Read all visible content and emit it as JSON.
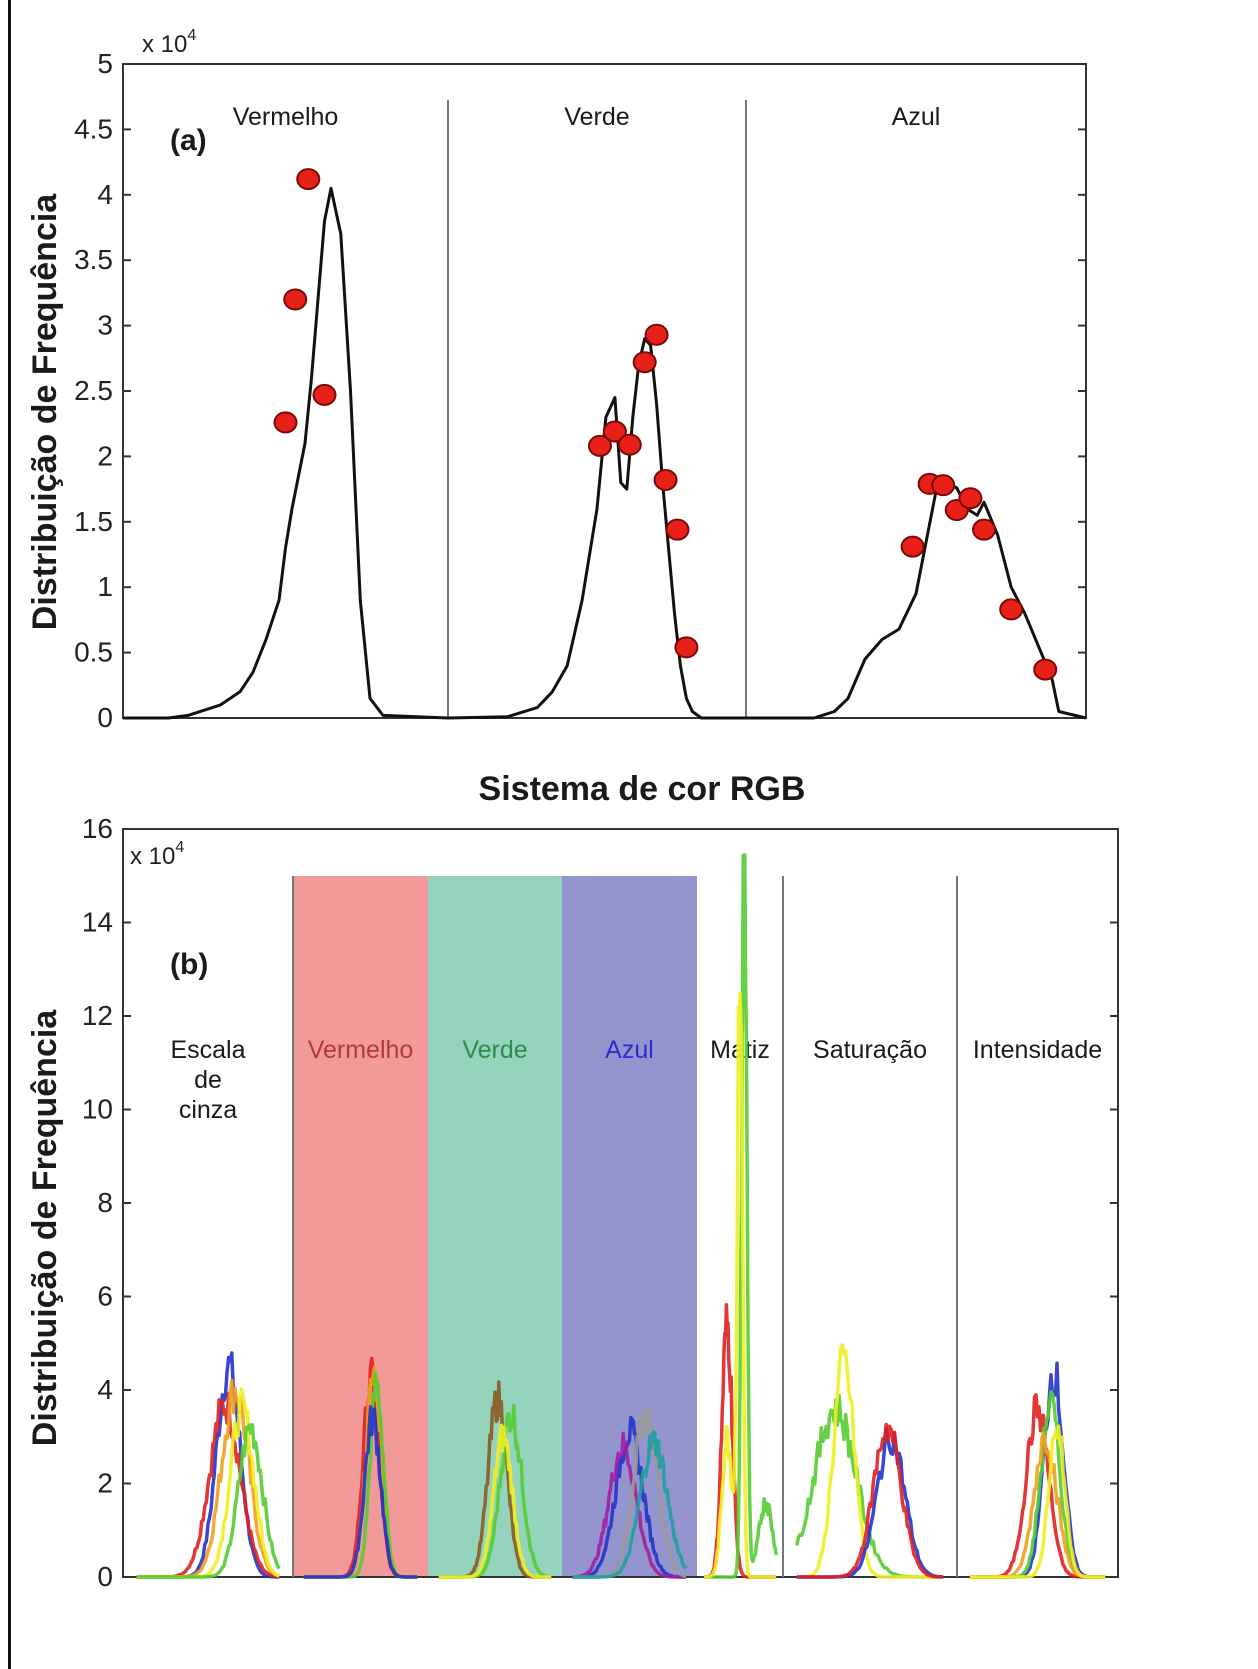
{
  "chart_data": [
    {
      "type": "line",
      "panel_label": "(a)",
      "exponent_label": "x 10",
      "exponent_sup": "4",
      "xlabel": "Sistema de cor RGB",
      "ylabel": "Distribuição de Frequência",
      "ylim": [
        0,
        5
      ],
      "yticks": [
        "0",
        "0.5",
        "1",
        "1.5",
        "2",
        "2.5",
        "3",
        "3.5",
        "4",
        "4.5",
        "5"
      ],
      "grid": false,
      "sections": [
        "Vermelho",
        "Verde",
        "Azul"
      ],
      "series": [
        {
          "section": "Vermelho",
          "x": [
            0,
            0.14,
            0.2,
            0.3,
            0.36,
            0.4,
            0.44,
            0.48,
            0.5,
            0.52,
            0.56,
            0.58,
            0.6,
            0.62,
            0.64,
            0.67,
            0.7,
            0.73,
            0.76,
            0.8,
            1
          ],
          "y": [
            0,
            0,
            0.02,
            0.1,
            0.2,
            0.35,
            0.6,
            0.9,
            1.3,
            1.6,
            2.1,
            2.6,
            3.2,
            3.8,
            4.05,
            3.7,
            2.5,
            0.9,
            0.15,
            0.02,
            0
          ]
        },
        {
          "section": "Verde",
          "x": [
            0,
            0.2,
            0.3,
            0.35,
            0.4,
            0.45,
            0.5,
            0.53,
            0.56,
            0.58,
            0.6,
            0.62,
            0.64,
            0.66,
            0.68,
            0.7,
            0.72,
            0.74,
            0.76,
            0.78,
            0.8,
            0.82,
            0.85,
            1
          ],
          "y": [
            0,
            0.01,
            0.08,
            0.2,
            0.4,
            0.9,
            1.6,
            2.3,
            2.45,
            1.8,
            1.75,
            2.3,
            2.7,
            2.9,
            2.85,
            2.4,
            1.8,
            1.3,
            0.8,
            0.4,
            0.15,
            0.05,
            0,
            0
          ]
        },
        {
          "section": "Azul",
          "x": [
            0,
            0.2,
            0.26,
            0.3,
            0.35,
            0.4,
            0.45,
            0.5,
            0.53,
            0.56,
            0.6,
            0.62,
            0.65,
            0.68,
            0.7,
            0.74,
            0.78,
            0.82,
            0.86,
            0.9,
            0.92,
            1
          ],
          "y": [
            0,
            0,
            0.05,
            0.15,
            0.45,
            0.6,
            0.68,
            0.95,
            1.35,
            1.75,
            1.78,
            1.76,
            1.6,
            1.55,
            1.65,
            1.4,
            1.0,
            0.8,
            0.55,
            0.3,
            0.05,
            0
          ]
        }
      ],
      "markers": [
        {
          "section": "Vermelho",
          "x": 0.5,
          "y": 2.26
        },
        {
          "section": "Vermelho",
          "x": 0.53,
          "y": 3.2
        },
        {
          "section": "Vermelho",
          "x": 0.57,
          "y": 4.12
        },
        {
          "section": "Vermelho",
          "x": 0.62,
          "y": 2.47
        },
        {
          "section": "Verde",
          "x": 0.51,
          "y": 2.08
        },
        {
          "section": "Verde",
          "x": 0.56,
          "y": 2.19
        },
        {
          "section": "Verde",
          "x": 0.61,
          "y": 2.09
        },
        {
          "section": "Verde",
          "x": 0.66,
          "y": 2.72
        },
        {
          "section": "Verde",
          "x": 0.7,
          "y": 2.93
        },
        {
          "section": "Verde",
          "x": 0.73,
          "y": 1.82
        },
        {
          "section": "Verde",
          "x": 0.77,
          "y": 1.44
        },
        {
          "section": "Verde",
          "x": 0.8,
          "y": 0.54
        },
        {
          "section": "Azul",
          "x": 0.49,
          "y": 1.31
        },
        {
          "section": "Azul",
          "x": 0.54,
          "y": 1.79
        },
        {
          "section": "Azul",
          "x": 0.58,
          "y": 1.78
        },
        {
          "section": "Azul",
          "x": 0.62,
          "y": 1.59
        },
        {
          "section": "Azul",
          "x": 0.66,
          "y": 1.68
        },
        {
          "section": "Azul",
          "x": 0.7,
          "y": 1.44
        },
        {
          "section": "Azul",
          "x": 0.78,
          "y": 0.83
        },
        {
          "section": "Azul",
          "x": 0.88,
          "y": 0.37
        }
      ],
      "colors": {
        "line": "#111111",
        "marker_fill": "#e8201a",
        "marker_stroke": "#7a0a05"
      }
    },
    {
      "type": "line",
      "panel_label": "(b)",
      "exponent_label": "x 10",
      "exponent_sup": "4",
      "ylabel": "Distribuição de Frequência",
      "ylim": [
        0,
        16
      ],
      "yticks": [
        "0",
        "2",
        "4",
        "6",
        "8",
        "10",
        "12",
        "14",
        "16"
      ],
      "grid": false,
      "sections": [
        {
          "label_lines": [
            "Escala",
            "de",
            "cinza"
          ],
          "color": "#1a1a1a",
          "shade": null
        },
        {
          "label_lines": [
            "Vermelho"
          ],
          "color": "#b03a3a",
          "shade": "#f2999a"
        },
        {
          "label_lines": [
            "Verde"
          ],
          "color": "#2d8a4a",
          "shade": "#95d4bc"
        },
        {
          "label_lines": [
            "Azul"
          ],
          "color": "#2b2ccf",
          "shade": "#9494cf"
        },
        {
          "label_lines": [
            "Matiz"
          ],
          "color": "#1a1a1a",
          "shade": null
        },
        {
          "label_lines": [
            "Saturação"
          ],
          "color": "#1a1a1a",
          "shade": null
        },
        {
          "label_lines": [
            "Intensidade"
          ],
          "color": "#1a1a1a",
          "shade": null
        }
      ],
      "series": [
        {
          "section": 0,
          "color": "#2233cc",
          "peaks": [
            [
              0.62,
              4.5,
              0.07
            ]
          ]
        },
        {
          "section": 0,
          "color": "#e02020",
          "peaks": [
            [
              0.6,
              3.7,
              0.09
            ]
          ]
        },
        {
          "section": 0,
          "color": "#f0a020",
          "peaks": [
            [
              0.66,
              4.0,
              0.08
            ]
          ]
        },
        {
          "section": 0,
          "color": "#eeee20",
          "peaks": [
            [
              0.7,
              3.6,
              0.07
            ]
          ]
        },
        {
          "section": 0,
          "color": "#55cc33",
          "peaks": [
            [
              0.75,
              3.2,
              0.07
            ]
          ]
        },
        {
          "section": 1,
          "color": "#e02020",
          "peaks": [
            [
              0.58,
              4.2,
              0.06
            ]
          ]
        },
        {
          "section": 1,
          "color": "#f0a020",
          "peaks": [
            [
              0.6,
              4.3,
              0.06
            ]
          ]
        },
        {
          "section": 1,
          "color": "#55cc33",
          "peaks": [
            [
              0.62,
              4.1,
              0.05
            ]
          ]
        },
        {
          "section": 1,
          "color": "#2233cc",
          "peaks": [
            [
              0.59,
              3.4,
              0.06
            ]
          ]
        },
        {
          "section": 2,
          "color": "#8a5a20",
          "peaks": [
            [
              0.52,
              3.8,
              0.07
            ]
          ]
        },
        {
          "section": 2,
          "color": "#55cc33",
          "peaks": [
            [
              0.62,
              3.5,
              0.08
            ]
          ]
        },
        {
          "section": 2,
          "color": "#eeee20",
          "peaks": [
            [
              0.56,
              3.0,
              0.07
            ]
          ]
        },
        {
          "section": 3,
          "color": "#2233cc",
          "peaks": [
            [
              0.5,
              3.1,
              0.1
            ]
          ]
        },
        {
          "section": 3,
          "color": "#a020a0",
          "peaks": [
            [
              0.45,
              2.8,
              0.1
            ]
          ]
        },
        {
          "section": 3,
          "color": "#999999",
          "peaks": [
            [
              0.62,
              3.5,
              0.09
            ]
          ]
        },
        {
          "section": 3,
          "color": "#20a0a0",
          "peaks": [
            [
              0.68,
              2.9,
              0.1
            ]
          ]
        },
        {
          "section": 4,
          "color": "#e02020",
          "peaks": [
            [
              0.35,
              5.4,
              0.06
            ]
          ]
        },
        {
          "section": 4,
          "color": "#55cc33",
          "peaks": [
            [
              0.55,
              15.3,
              0.03
            ],
            [
              0.8,
              1.6,
              0.08
            ]
          ]
        },
        {
          "section": 4,
          "color": "#eeee20",
          "peaks": [
            [
              0.5,
              13.0,
              0.03
            ],
            [
              0.35,
              3.0,
              0.06
            ]
          ]
        },
        {
          "section": 5,
          "color": "#55cc33",
          "peaks": [
            [
              0.3,
              3.6,
              0.12
            ]
          ]
        },
        {
          "section": 5,
          "color": "#eeee20",
          "peaks": [
            [
              0.35,
              4.6,
              0.06
            ]
          ]
        },
        {
          "section": 5,
          "color": "#2233cc",
          "peaks": [
            [
              0.62,
              3.0,
              0.08
            ]
          ]
        },
        {
          "section": 5,
          "color": "#e02020",
          "peaks": [
            [
              0.6,
              3.2,
              0.08
            ]
          ]
        },
        {
          "section": 6,
          "color": "#2233cc",
          "peaks": [
            [
              0.6,
              4.4,
              0.06
            ]
          ]
        },
        {
          "section": 6,
          "color": "#e02020",
          "peaks": [
            [
              0.5,
              3.6,
              0.07
            ]
          ]
        },
        {
          "section": 6,
          "color": "#55cc33",
          "peaks": [
            [
              0.58,
              3.7,
              0.06
            ]
          ]
        },
        {
          "section": 6,
          "color": "#f0a020",
          "peaks": [
            [
              0.55,
              3.0,
              0.07
            ]
          ]
        },
        {
          "section": 6,
          "color": "#eeee20",
          "peaks": [
            [
              0.62,
              3.2,
              0.05
            ]
          ]
        }
      ]
    }
  ]
}
